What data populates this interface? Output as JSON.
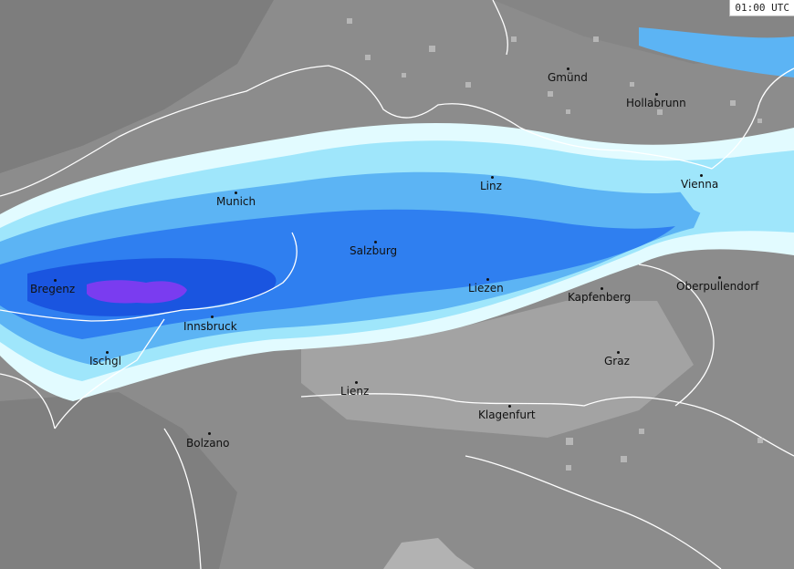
{
  "timestamp": "01:00 UTC",
  "colors": {
    "land": "#8c8c8c",
    "land_dark": "#7a7a7a",
    "valley": "#a8a8a8",
    "border": "#ffffff",
    "precip_light": "#e2fbff",
    "precip_cyan": "#9fe6fb",
    "precip_sky": "#5cb4f4",
    "precip_blue": "#2f7ff0",
    "precip_deep": "#1a55e0",
    "precip_violet": "#7a3cf0"
  },
  "cities": [
    {
      "name": "Gmünd"
    },
    {
      "name": "Hollabrunn"
    },
    {
      "name": "Linz"
    },
    {
      "name": "Vienna"
    },
    {
      "name": "Munich"
    },
    {
      "name": "Salzburg"
    },
    {
      "name": "Bregenz"
    },
    {
      "name": "Liezen"
    },
    {
      "name": "Kapfenberg"
    },
    {
      "name": "Oberpullendorf"
    },
    {
      "name": "Innsbruck"
    },
    {
      "name": "Ischgl"
    },
    {
      "name": "Graz"
    },
    {
      "name": "Lienz"
    },
    {
      "name": "Klagenfurt"
    },
    {
      "name": "Bolzano"
    }
  ]
}
